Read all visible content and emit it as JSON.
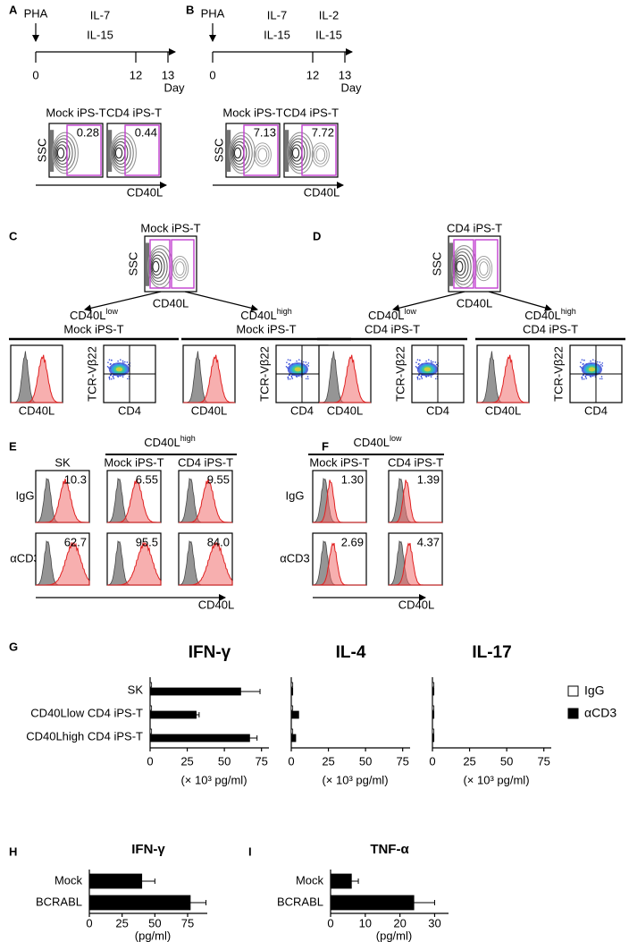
{
  "panels": {
    "A": {
      "label": "A",
      "stim": "PHA",
      "cytokines": [
        "IL-7",
        "IL-15"
      ],
      "days": [
        "0",
        "12",
        "13"
      ],
      "day_unit": "Day",
      "plots": [
        {
          "title": "Mock iPS-T",
          "gate": "0.28"
        },
        {
          "title": "CD4 iPS-T",
          "gate": "0.44"
        }
      ],
      "y_axis": "SSC",
      "x_axis": "CD40L"
    },
    "B": {
      "label": "B",
      "stim": "PHA",
      "cytokines": [
        "IL-7",
        "IL-15"
      ],
      "cytokines2": [
        "IL-2",
        "IL-15"
      ],
      "days": [
        "0",
        "12",
        "13"
      ],
      "day_unit": "Day",
      "plots": [
        {
          "title": "Mock iPS-T",
          "gate": "7.13"
        },
        {
          "title": "CD4 iPS-T",
          "gate": "7.72"
        }
      ],
      "y_axis": "SSC",
      "x_axis": "CD40L"
    },
    "C": {
      "label": "C",
      "title": "Mock iPS-T",
      "y_axis": "SSC",
      "x_axis": "CD40L",
      "groups": [
        {
          "marker": "CD40L",
          "level": "low",
          "cells": "Mock iPS-T",
          "hist_x": "CD40L",
          "dot_y": "TCR-Vβ22",
          "dot_x": "CD4"
        },
        {
          "marker": "CD40L",
          "level": "high",
          "cells": "Mock iPS-T",
          "hist_x": "CD40L",
          "dot_y": "TCR-Vβ22",
          "dot_x": "CD4"
        }
      ]
    },
    "D": {
      "label": "D",
      "title": "CD4 iPS-T",
      "y_axis": "SSC",
      "x_axis": "CD40L",
      "groups": [
        {
          "marker": "CD40L",
          "level": "low",
          "cells": "CD4 iPS-T",
          "hist_x": "CD40L",
          "dot_y": "TCR-Vβ22",
          "dot_x": "CD4"
        },
        {
          "marker": "CD40L",
          "level": "high",
          "cells": "CD4 iPS-T",
          "hist_x": "CD40L",
          "dot_y": "TCR-Vβ22",
          "dot_x": "CD4"
        }
      ]
    },
    "E": {
      "label": "E",
      "header": {
        "marker": "CD40L",
        "level": "high"
      },
      "columns": [
        "SK",
        "Mock iPS-T",
        "CD4 iPS-T"
      ],
      "rows": [
        {
          "name": "IgG",
          "values": [
            "10.3",
            "6.55",
            "9.55"
          ]
        },
        {
          "name": "αCD3",
          "values": [
            "62.7",
            "95.5",
            "84.0"
          ]
        }
      ],
      "x_axis": "CD40L"
    },
    "F": {
      "label": "F",
      "header": {
        "marker": "CD40L",
        "level": "low"
      },
      "columns": [
        "Mock iPS-T",
        "CD4 iPS-T"
      ],
      "rows": [
        {
          "name": "IgG",
          "values": [
            "1.30",
            "1.39"
          ]
        },
        {
          "name": "αCD3",
          "values": [
            "2.69",
            "4.37"
          ]
        }
      ],
      "x_axis": "CD40L"
    },
    "G": {
      "label": "G"
    },
    "H": {
      "label": "H"
    },
    "I": {
      "label": "I"
    }
  },
  "chart_data": [
    {
      "type": "bar",
      "orientation": "horizontal",
      "title": "IFN-γ",
      "categories": [
        "SK",
        "CD40Llow CD4 iPS-T",
        "CD40Lhigh CD4 iPS-T"
      ],
      "series": [
        {
          "name": "IgG",
          "color": "#ffffff",
          "values": [
            1,
            1,
            1
          ]
        },
        {
          "name": "αCD3",
          "color": "#000000",
          "values": [
            61,
            31,
            67
          ],
          "errors": [
            13,
            2,
            5
          ]
        }
      ],
      "xlim": [
        0,
        80
      ],
      "xticks": [
        0,
        25,
        50,
        75
      ],
      "xlabel": "(× 10³ pg/ml)"
    },
    {
      "type": "bar",
      "orientation": "horizontal",
      "title": "IL-4",
      "series": [
        {
          "color": "#ffffff",
          "values": [
            1,
            1,
            1
          ]
        },
        {
          "color": "#000000",
          "values": [
            1,
            5,
            3
          ]
        }
      ],
      "xlim": [
        0,
        80
      ],
      "xticks": [
        0,
        25,
        50,
        75
      ],
      "xlabel": "(× 10³ pg/ml)"
    },
    {
      "type": "bar",
      "orientation": "horizontal",
      "title": "IL-17",
      "series": [
        {
          "color": "#ffffff",
          "values": [
            1,
            1,
            1
          ]
        },
        {
          "color": "#000000",
          "values": [
            1,
            1,
            1
          ]
        }
      ],
      "xlim": [
        0,
        80
      ],
      "xticks": [
        0,
        25,
        50,
        75
      ],
      "xlabel": "(× 10³ pg/ml)"
    },
    {
      "type": "bar",
      "orientation": "horizontal",
      "title": "IFN-γ",
      "categories": [
        "Mock",
        "BCRABL"
      ],
      "series": [
        {
          "color": "#000000",
          "values": [
            40,
            77
          ],
          "errors": [
            10,
            12
          ]
        }
      ],
      "xlim": [
        0,
        90
      ],
      "xticks": [
        0,
        25,
        50,
        75
      ],
      "xlabel": "(pg/ml)"
    },
    {
      "type": "bar",
      "orientation": "horizontal",
      "title": "TNF-α",
      "categories": [
        "Mock",
        "BCRABL"
      ],
      "series": [
        {
          "color": "#000000",
          "values": [
            6,
            24
          ],
          "errors": [
            2,
            6
          ]
        }
      ],
      "xlim": [
        0,
        34
      ],
      "xticks": [
        0,
        10,
        20,
        30
      ],
      "xlabel": "(pg/ml)"
    }
  ]
}
